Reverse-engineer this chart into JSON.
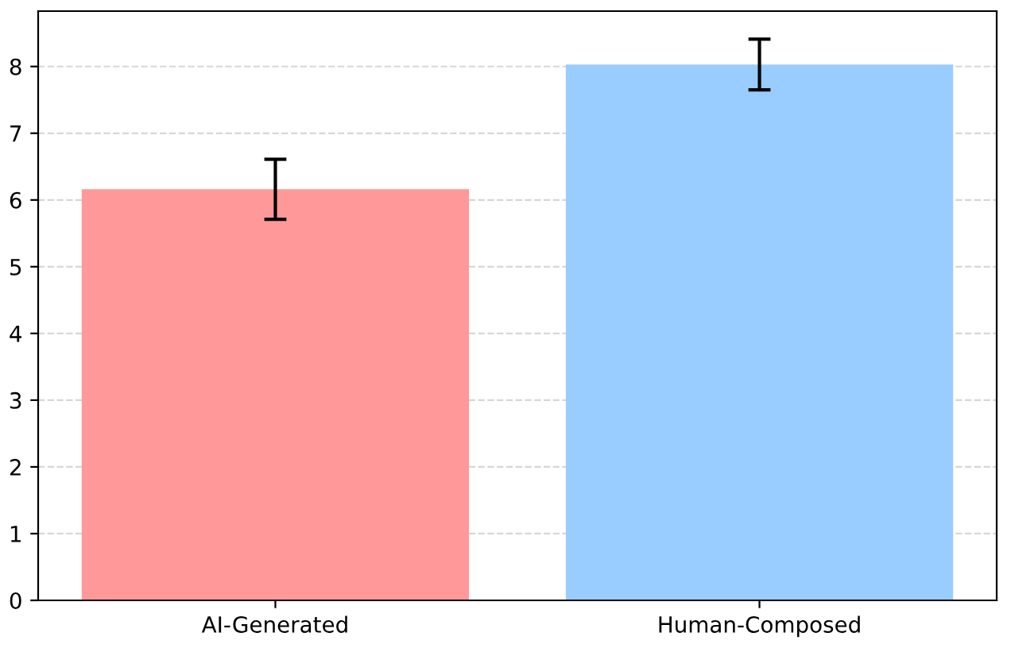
{
  "chart_data": {
    "type": "bar",
    "categories": [
      "AI-Generated",
      "Human-Composed"
    ],
    "values": [
      6.16,
      8.03
    ],
    "errors": [
      0.45,
      0.38
    ],
    "colors": [
      "#ff9999",
      "#99ccff"
    ],
    "ylim": [
      0,
      8.83
    ],
    "yticks": [
      0,
      1,
      2,
      3,
      4,
      5,
      6,
      7,
      8
    ],
    "grid": "y"
  }
}
